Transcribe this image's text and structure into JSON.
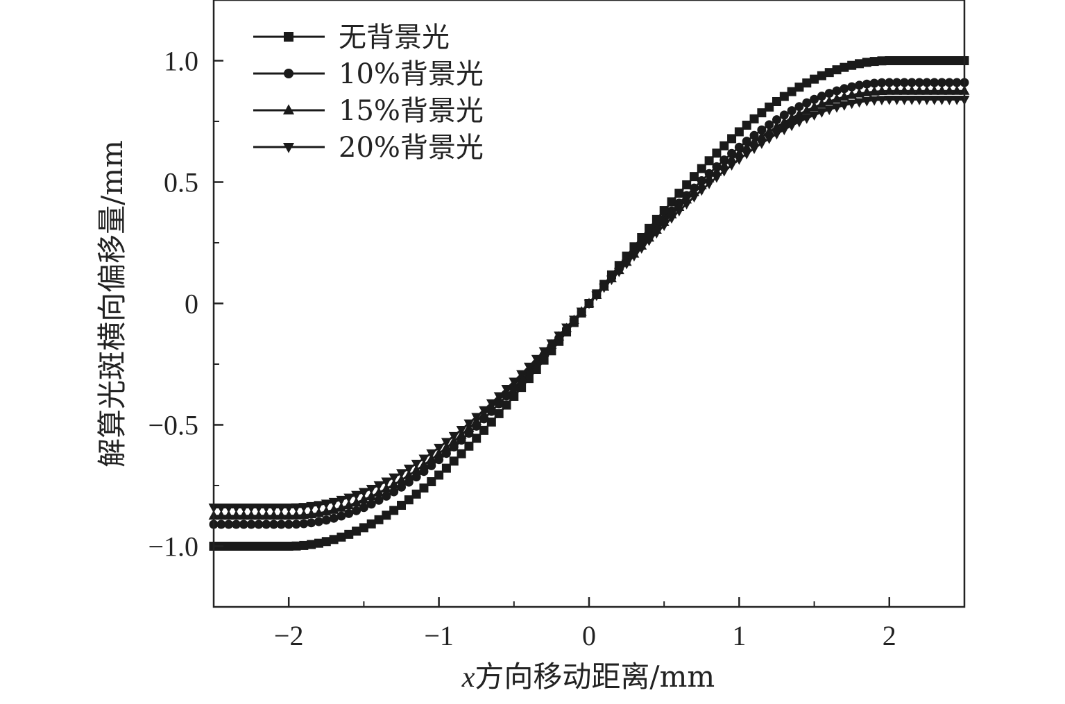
{
  "chart_data": {
    "type": "line",
    "xlabel_var": "x",
    "xlabel_rest": "方向移动距离/mm",
    "ylabel": "解算光斑横向偏移量/mm",
    "xlim": [
      -2.5,
      2.5
    ],
    "ylim": [
      -1.25,
      1.25
    ],
    "x_ticks": [
      -2,
      -1,
      0,
      1,
      2
    ],
    "x_tick_labels": [
      "−2",
      "−1",
      "0",
      "1",
      "2"
    ],
    "y_ticks": [
      -1.0,
      -0.5,
      0,
      0.5,
      1.0
    ],
    "y_tick_labels": [
      "−1.0",
      "−0.5",
      "0",
      "0.5",
      "1.0"
    ],
    "legend_position": "top-left",
    "grid": false,
    "series": [
      {
        "name": "无背景光",
        "marker": "square",
        "plateau": 1.0,
        "transition": "sine",
        "color": "#1a1a1a"
      },
      {
        "name": "10%背景光",
        "marker": "circle",
        "plateau": 0.91,
        "transition": "sine",
        "color": "#1a1a1a"
      },
      {
        "name": "15%背景光",
        "marker": "triangle-up",
        "plateau": 0.875,
        "transition": "sine",
        "color": "#1a1a1a"
      },
      {
        "name": "20%背景光",
        "marker": "triangle-down",
        "plateau": 0.84,
        "transition": "sine",
        "color": "#1a1a1a"
      }
    ],
    "x_sample_step": 0.05,
    "plateau_start_abs_x": 2.0
  }
}
